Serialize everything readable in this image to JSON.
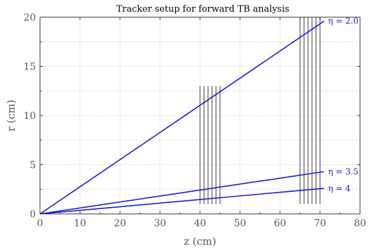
{
  "chart_data": {
    "type": "line",
    "title": "Tracker setup for forward TB analysis",
    "xlabel": "z (cm)",
    "ylabel": "r (cm)",
    "xlim": [
      0,
      80
    ],
    "ylim": [
      0,
      20
    ],
    "x_ticks": [
      "0",
      "10",
      "20",
      "30",
      "40",
      "50",
      "60",
      "70",
      "80"
    ],
    "y_ticks": [
      "0",
      "5",
      "10",
      "15",
      "20"
    ],
    "grid": true,
    "colors": {
      "tracks": "#1a1ad8",
      "layers": "#808080",
      "grid": "#c8c8c8"
    },
    "series": [
      {
        "name": "η = 2.0",
        "x": [
          0,
          71
        ],
        "y": [
          0,
          19.6
        ]
      },
      {
        "name": "η = 3.5",
        "x": [
          0,
          71
        ],
        "y": [
          0,
          4.3
        ]
      },
      {
        "name": "η = 4",
        "x": [
          0,
          71
        ],
        "y": [
          0,
          2.6
        ]
      }
    ],
    "detector_layers": [
      {
        "z": [
          40,
          41,
          42,
          43,
          44,
          45
        ],
        "r": [
          1.0,
          13.0
        ]
      },
      {
        "z": [
          65,
          66,
          67,
          68,
          69,
          70
        ],
        "r": [
          1.0,
          20.0
        ]
      }
    ]
  }
}
